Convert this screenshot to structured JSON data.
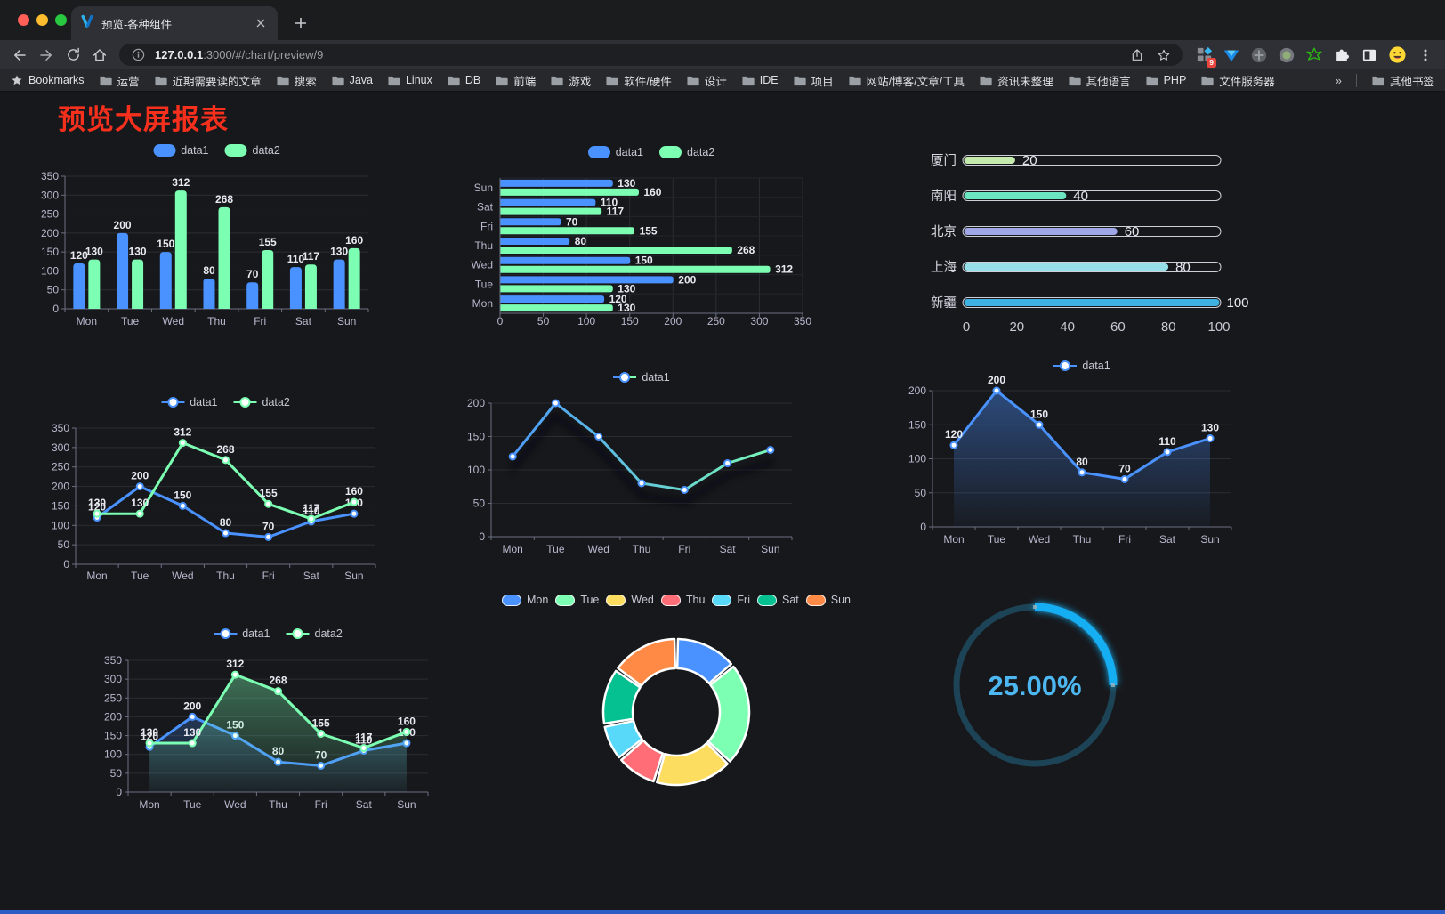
{
  "browser": {
    "tab": {
      "title": "预览-各种组件"
    },
    "url": {
      "host": "127.0.0.1",
      "rest": ":3000/#/chart/preview/9"
    },
    "extensions_badge": "9",
    "bookmarks_bar": {
      "label": "Bookmarks",
      "folders": [
        "运营",
        "近期需要读的文章",
        "搜索",
        "Java",
        "Linux",
        "DB",
        "前端",
        "游戏",
        "软件/硬件",
        "设计",
        "IDE",
        "项目",
        "网站/博客/文章/工具",
        "资讯未整理",
        "其他语言",
        "PHP",
        "文件服务器"
      ],
      "overflow": "»",
      "other_bookmarks": "其他书签"
    }
  },
  "page": {
    "title": "预览大屏报表",
    "title_color": "#f6301c"
  },
  "chart_data": [
    {
      "type": "bar",
      "categories": [
        "Mon",
        "Tue",
        "Wed",
        "Thu",
        "Fri",
        "Sat",
        "Sun"
      ],
      "series": [
        {
          "name": "data1",
          "color": "#4992ff",
          "values": [
            120,
            200,
            150,
            80,
            70,
            110,
            130
          ]
        },
        {
          "name": "data2",
          "color": "#7cffb2",
          "values": [
            130,
            130,
            312,
            268,
            155,
            117,
            160
          ]
        }
      ],
      "ylim": [
        0,
        350
      ],
      "ytick_step": 50,
      "grid": true,
      "legend_position": "top",
      "show_labels": true
    },
    {
      "type": "hbar",
      "categories": [
        "Mon",
        "Tue",
        "Wed",
        "Thu",
        "Fri",
        "Sat",
        "Sun"
      ],
      "series": [
        {
          "name": "data1",
          "color": "#4992ff",
          "values": [
            120,
            200,
            150,
            80,
            70,
            110,
            130
          ]
        },
        {
          "name": "data2",
          "color": "#7cffb2",
          "values": [
            130,
            130,
            312,
            268,
            155,
            117,
            160
          ]
        }
      ],
      "xlim": [
        0,
        350
      ],
      "xtick_step": 50,
      "grid": true,
      "legend_position": "top",
      "show_labels": true
    },
    {
      "type": "progress",
      "max": 100,
      "xticks": [
        0,
        20,
        40,
        60,
        80,
        100
      ],
      "items": [
        {
          "label": "厦门",
          "value": 20,
          "color": "#c4ebad"
        },
        {
          "label": "南阳",
          "value": 40,
          "color": "#6be6c1"
        },
        {
          "label": "北京",
          "value": 60,
          "color": "#a0a7e6"
        },
        {
          "label": "上海",
          "value": 80,
          "color": "#96dee8"
        },
        {
          "label": "新疆",
          "value": 100,
          "color": "#3fb1e3"
        }
      ]
    },
    {
      "type": "line",
      "categories": [
        "Mon",
        "Tue",
        "Wed",
        "Thu",
        "Fri",
        "Sat",
        "Sun"
      ],
      "series": [
        {
          "name": "data1",
          "color": "#4992ff",
          "values": [
            120,
            200,
            150,
            80,
            70,
            110,
            130
          ]
        },
        {
          "name": "data2",
          "color": "#7cffb2",
          "values": [
            130,
            130,
            312,
            268,
            155,
            117,
            160
          ]
        }
      ],
      "ylim": [
        0,
        350
      ],
      "ytick_step": 50,
      "grid": true,
      "legend_position": "top",
      "show_labels": true
    },
    {
      "type": "line",
      "variant": "gradient-shadow",
      "categories": [
        "Mon",
        "Tue",
        "Wed",
        "Thu",
        "Fri",
        "Sat",
        "Sun"
      ],
      "series": [
        {
          "name": "data1",
          "gradient": [
            "#4992ff",
            "#7cffb2"
          ],
          "color": "#4992ff",
          "values": [
            120,
            200,
            150,
            80,
            70,
            110,
            130
          ]
        }
      ],
      "ylim": [
        0,
        200
      ],
      "ytick_step": 50,
      "grid": true,
      "legend_position": "top",
      "show_labels": false
    },
    {
      "type": "area",
      "categories": [
        "Mon",
        "Tue",
        "Wed",
        "Thu",
        "Fri",
        "Sat",
        "Sun"
      ],
      "series": [
        {
          "name": "data1",
          "color": "#4992ff",
          "area": true,
          "values": [
            120,
            200,
            150,
            80,
            70,
            110,
            130
          ]
        }
      ],
      "ylim": [
        0,
        200
      ],
      "ytick_step": 50,
      "grid": true,
      "legend_position": "top",
      "show_labels": true
    },
    {
      "type": "area",
      "categories": [
        "Mon",
        "Tue",
        "Wed",
        "Thu",
        "Fri",
        "Sat",
        "Sun"
      ],
      "series": [
        {
          "name": "data1",
          "color": "#4992ff",
          "area": true,
          "values": [
            120,
            200,
            150,
            80,
            70,
            110,
            130
          ]
        },
        {
          "name": "data2",
          "color": "#7cffb2",
          "area": true,
          "values": [
            130,
            130,
            312,
            268,
            155,
            117,
            160
          ]
        }
      ],
      "ylim": [
        0,
        350
      ],
      "ytick_step": 50,
      "grid": true,
      "legend_position": "top",
      "show_labels": true
    },
    {
      "type": "donut",
      "categories": [
        "Mon",
        "Tue",
        "Wed",
        "Thu",
        "Fri",
        "Sat",
        "Sun"
      ],
      "values": [
        120,
        200,
        150,
        80,
        70,
        110,
        130
      ],
      "colors": [
        "#4992ff",
        "#7cffb2",
        "#fddd60",
        "#ff6e76",
        "#58d9f9",
        "#05c091",
        "#ff8a45"
      ],
      "border_color": "#ffffff",
      "legend_position": "top"
    },
    {
      "type": "gauge",
      "value_text": "25.00%",
      "percent": 25,
      "color": "#16aef2",
      "track_color": "#1d4456",
      "text_color": "#4db7f1"
    }
  ]
}
